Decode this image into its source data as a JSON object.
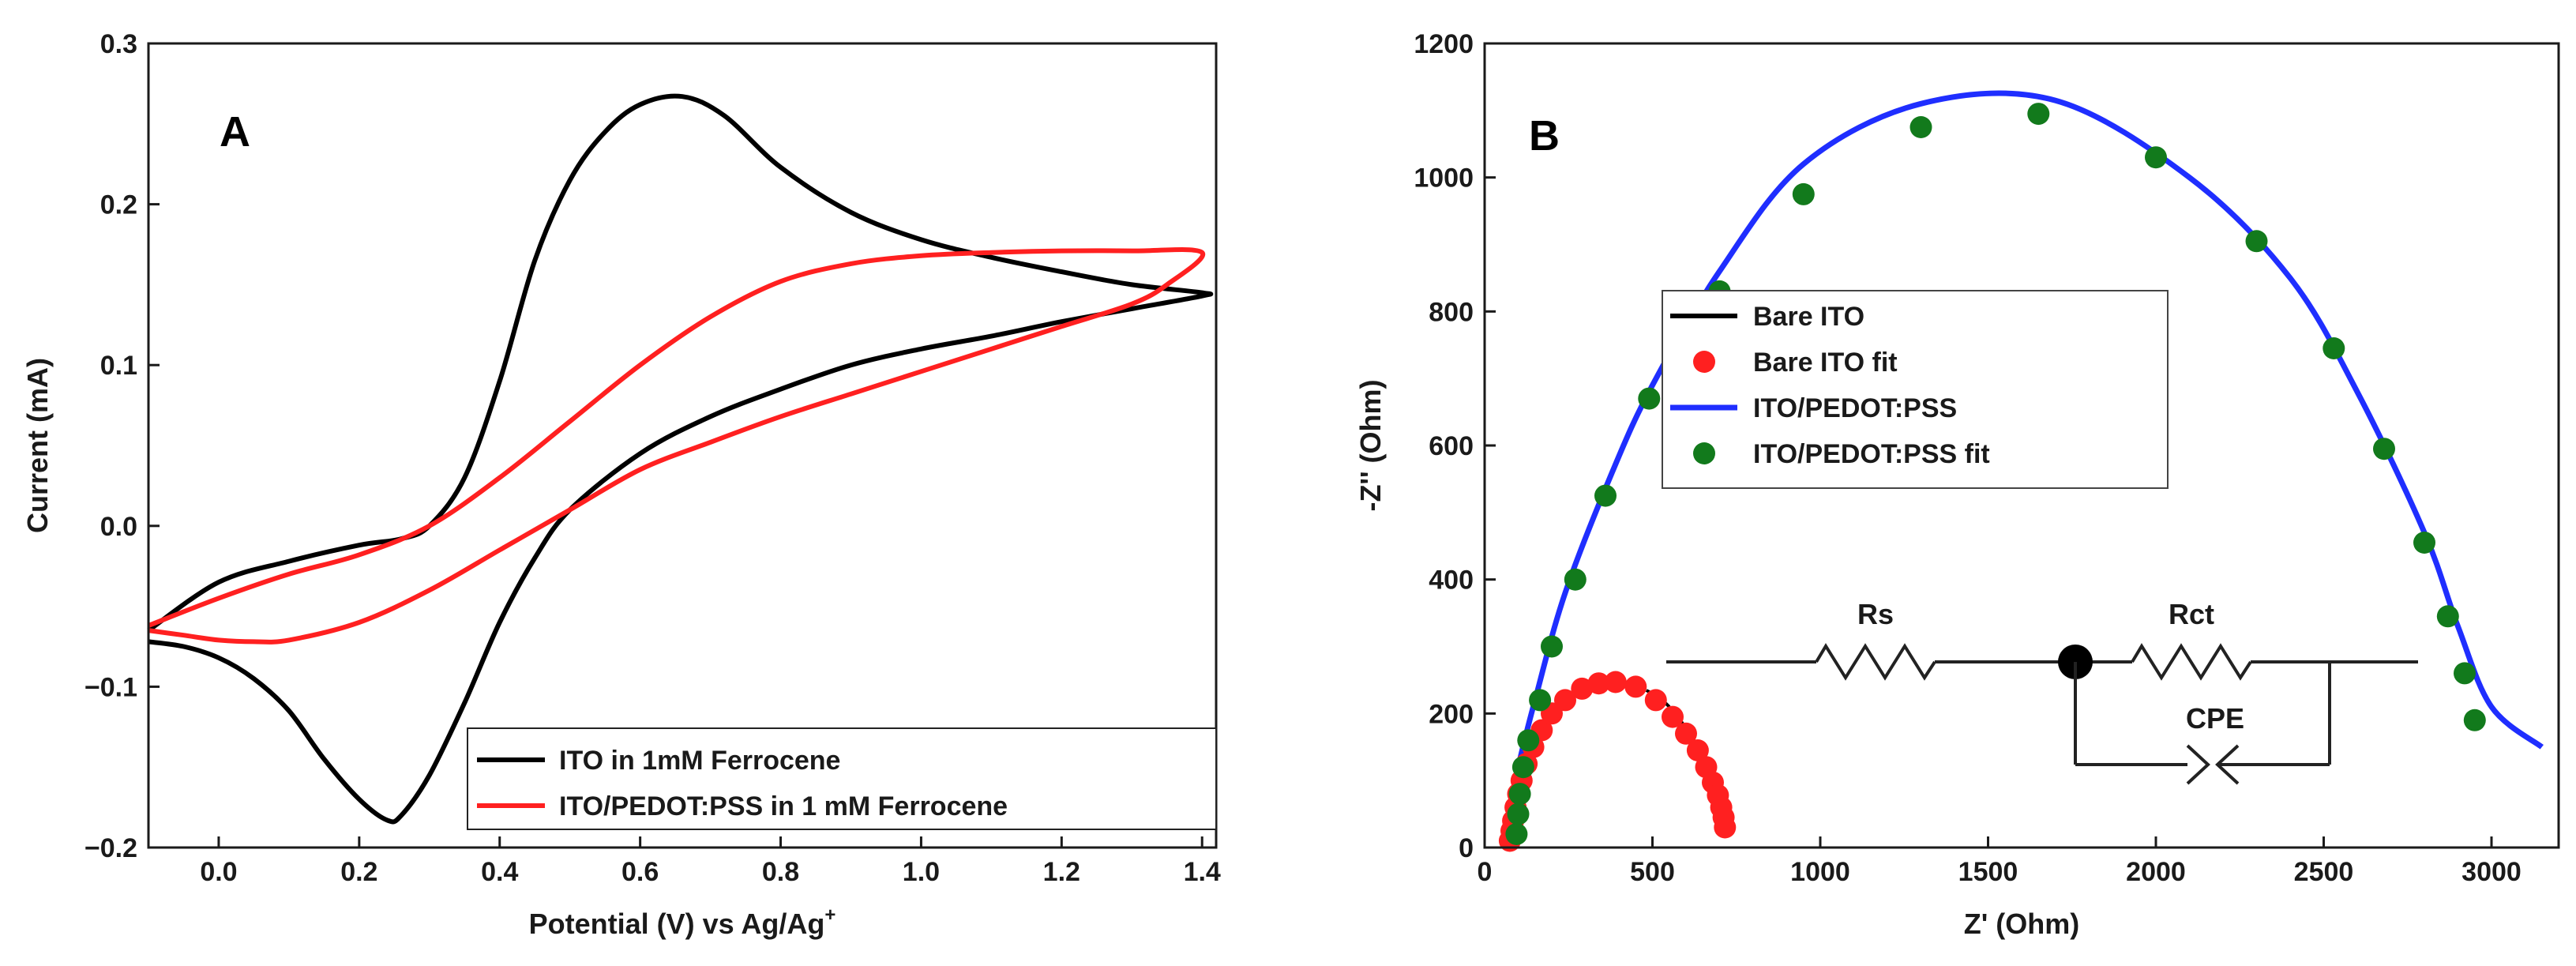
{
  "colors": {
    "black": "#000000",
    "red": "#ff2020",
    "blue": "#1f2eff",
    "green": "#127a1c",
    "axis": "#1a1a1a"
  },
  "chart_data": [
    {
      "panel": "A",
      "type": "line",
      "panel_label": "A",
      "xlabel": "Potential (V) vs Ag/Ag",
      "xlabel_sup": "+",
      "ylabel": "Current (mA)",
      "xlim": [
        -0.1,
        1.42
      ],
      "ylim": [
        -0.2,
        0.3
      ],
      "xticks": [
        0.0,
        0.2,
        0.4,
        0.6,
        0.8,
        1.0,
        1.2,
        1.4
      ],
      "xtick_labels": [
        "0.0",
        "0.2",
        "0.4",
        "0.6",
        "0.8",
        "1.0",
        "1.2",
        "1.4"
      ],
      "yticks": [
        -0.2,
        -0.1,
        0.0,
        0.1,
        0.2,
        0.3
      ],
      "ytick_labels": [
        "−0.2",
        "−0.1",
        "0.0",
        "0.1",
        "0.2",
        "0.3"
      ],
      "legend": {
        "position": "bottom-right",
        "entries": [
          {
            "label": "ITO in 1mM Ferrocene",
            "color_key": "black"
          },
          {
            "label": "ITO/PEDOT:PSS in 1 mM Ferrocene",
            "color_key": "red"
          }
        ]
      },
      "series": [
        {
          "name": "ITO in 1mM Ferrocene",
          "color_key": "black",
          "points": [
            [
              -0.1,
              -0.065
            ],
            [
              0.0,
              -0.035
            ],
            [
              0.1,
              -0.022
            ],
            [
              0.2,
              -0.012
            ],
            [
              0.26,
              -0.008
            ],
            [
              0.3,
              0.0
            ],
            [
              0.35,
              0.03
            ],
            [
              0.4,
              0.09
            ],
            [
              0.45,
              0.165
            ],
            [
              0.5,
              0.215
            ],
            [
              0.55,
              0.245
            ],
            [
              0.6,
              0.262
            ],
            [
              0.66,
              0.267
            ],
            [
              0.72,
              0.255
            ],
            [
              0.8,
              0.223
            ],
            [
              0.9,
              0.195
            ],
            [
              1.0,
              0.178
            ],
            [
              1.1,
              0.167
            ],
            [
              1.2,
              0.158
            ],
            [
              1.3,
              0.15
            ],
            [
              1.4,
              0.145
            ],
            [
              1.4,
              0.143
            ],
            [
              1.3,
              0.135
            ],
            [
              1.2,
              0.127
            ],
            [
              1.1,
              0.118
            ],
            [
              1.0,
              0.11
            ],
            [
              0.9,
              0.1
            ],
            [
              0.8,
              0.085
            ],
            [
              0.7,
              0.068
            ],
            [
              0.6,
              0.045
            ],
            [
              0.5,
              0.01
            ],
            [
              0.45,
              -0.02
            ],
            [
              0.4,
              -0.06
            ],
            [
              0.35,
              -0.11
            ],
            [
              0.3,
              -0.155
            ],
            [
              0.26,
              -0.18
            ],
            [
              0.24,
              -0.183
            ],
            [
              0.2,
              -0.17
            ],
            [
              0.15,
              -0.145
            ],
            [
              0.1,
              -0.115
            ],
            [
              0.05,
              -0.095
            ],
            [
              0.0,
              -0.082
            ],
            [
              -0.05,
              -0.075
            ],
            [
              -0.1,
              -0.072
            ]
          ]
        },
        {
          "name": "ITO/PEDOT:PSS in 1 mM Ferrocene",
          "color_key": "red",
          "points": [
            [
              -0.1,
              -0.062
            ],
            [
              0.0,
              -0.045
            ],
            [
              0.1,
              -0.03
            ],
            [
              0.2,
              -0.018
            ],
            [
              0.3,
              0.0
            ],
            [
              0.4,
              0.03
            ],
            [
              0.5,
              0.065
            ],
            [
              0.6,
              0.1
            ],
            [
              0.7,
              0.13
            ],
            [
              0.8,
              0.152
            ],
            [
              0.9,
              0.163
            ],
            [
              1.0,
              0.168
            ],
            [
              1.1,
              0.17
            ],
            [
              1.2,
              0.171
            ],
            [
              1.3,
              0.171
            ],
            [
              1.4,
              0.17
            ],
            [
              1.35,
              0.15
            ],
            [
              1.3,
              0.138
            ],
            [
              1.2,
              0.124
            ],
            [
              1.1,
              0.11
            ],
            [
              1.0,
              0.096
            ],
            [
              0.9,
              0.082
            ],
            [
              0.8,
              0.068
            ],
            [
              0.7,
              0.052
            ],
            [
              0.6,
              0.035
            ],
            [
              0.5,
              0.01
            ],
            [
              0.4,
              -0.015
            ],
            [
              0.3,
              -0.04
            ],
            [
              0.2,
              -0.06
            ],
            [
              0.1,
              -0.071
            ],
            [
              0.05,
              -0.072
            ],
            [
              0.0,
              -0.071
            ],
            [
              -0.05,
              -0.068
            ],
            [
              -0.1,
              -0.065
            ]
          ]
        }
      ]
    },
    {
      "panel": "B",
      "type": "scatter",
      "panel_label": "B",
      "xlabel": "Z' (Ohm)",
      "ylabel": "-Z'' (Ohm)",
      "xlim": [
        0,
        3200
      ],
      "ylim": [
        0,
        1200
      ],
      "xticks": [
        0,
        500,
        1000,
        1500,
        2000,
        2500,
        3000
      ],
      "xtick_labels": [
        "0",
        "500",
        "1000",
        "1500",
        "2000",
        "2500",
        "3000"
      ],
      "yticks": [
        0,
        200,
        400,
        600,
        800,
        1000,
        1200
      ],
      "ytick_labels": [
        "0",
        "200",
        "400",
        "600",
        "800",
        "1000",
        "1200"
      ],
      "legend": {
        "position": "upper-left",
        "entries": [
          {
            "label": "Bare ITO",
            "kind": "line",
            "color_key": "black"
          },
          {
            "label": "Bare ITO fit",
            "kind": "marker",
            "color_key": "red"
          },
          {
            "label": "ITO/PEDOT:PSS",
            "kind": "line",
            "color_key": "blue"
          },
          {
            "label": "ITO/PEDOT:PSS fit",
            "kind": "marker",
            "color_key": "green"
          }
        ]
      },
      "circuit": {
        "labels": [
          "Rs",
          "Rct",
          "CPE"
        ]
      },
      "series": [
        {
          "name": "Bare ITO",
          "kind": "line",
          "color_key": "black",
          "points": [
            [
              75,
              10
            ],
            [
              90,
              50
            ],
            [
              110,
              100
            ],
            [
              140,
              150
            ],
            [
              180,
              190
            ],
            [
              230,
              220
            ],
            [
              290,
              240
            ],
            [
              360,
              247
            ],
            [
              420,
              245
            ],
            [
              480,
              235
            ],
            [
              540,
              215
            ],
            [
              590,
              185
            ],
            [
              635,
              150
            ],
            [
              670,
              110
            ],
            [
              695,
              70
            ],
            [
              710,
              30
            ]
          ]
        },
        {
          "name": "Bare ITO fit",
          "kind": "marker",
          "color_key": "red",
          "points": [
            [
              75,
              10
            ],
            [
              80,
              25
            ],
            [
              85,
              40
            ],
            [
              92,
              60
            ],
            [
              100,
              80
            ],
            [
              110,
              100
            ],
            [
              125,
              125
            ],
            [
              145,
              150
            ],
            [
              170,
              175
            ],
            [
              200,
              200
            ],
            [
              240,
              220
            ],
            [
              290,
              237
            ],
            [
              340,
              245
            ],
            [
              390,
              247
            ],
            [
              450,
              240
            ],
            [
              510,
              220
            ],
            [
              560,
              195
            ],
            [
              600,
              170
            ],
            [
              635,
              145
            ],
            [
              660,
              120
            ],
            [
              680,
              97
            ],
            [
              695,
              78
            ],
            [
              705,
              60
            ],
            [
              712,
              45
            ],
            [
              716,
              30
            ]
          ]
        },
        {
          "name": "ITO/PEDOT:PSS",
          "kind": "line",
          "color_key": "blue",
          "points": [
            [
              60,
              20
            ],
            [
              100,
              120
            ],
            [
              150,
              220
            ],
            [
              240,
              380
            ],
            [
              380,
              560
            ],
            [
              500,
              690
            ],
            [
              700,
              860
            ],
            [
              950,
              1020
            ],
            [
              1300,
              1110
            ],
            [
              1700,
              1115
            ],
            [
              2100,
              1000
            ],
            [
              2400,
              850
            ],
            [
              2600,
              680
            ],
            [
              2800,
              470
            ],
            [
              2900,
              330
            ],
            [
              3000,
              210
            ],
            [
              3150,
              150
            ]
          ]
        },
        {
          "name": "ITO/PEDOT:PSS fit",
          "kind": "marker",
          "color_key": "green",
          "points": [
            [
              95,
              20
            ],
            [
              100,
              50
            ],
            [
              105,
              80
            ],
            [
              115,
              120
            ],
            [
              130,
              160
            ],
            [
              165,
              220
            ],
            [
              200,
              300
            ],
            [
              270,
              400
            ],
            [
              360,
              525
            ],
            [
              490,
              670
            ],
            [
              700,
              830
            ],
            [
              950,
              975
            ],
            [
              1300,
              1075
            ],
            [
              1650,
              1095
            ],
            [
              2000,
              1030
            ],
            [
              2300,
              905
            ],
            [
              2530,
              745
            ],
            [
              2680,
              595
            ],
            [
              2800,
              455
            ],
            [
              2870,
              345
            ],
            [
              2920,
              260
            ],
            [
              2950,
              190
            ]
          ]
        }
      ]
    }
  ]
}
